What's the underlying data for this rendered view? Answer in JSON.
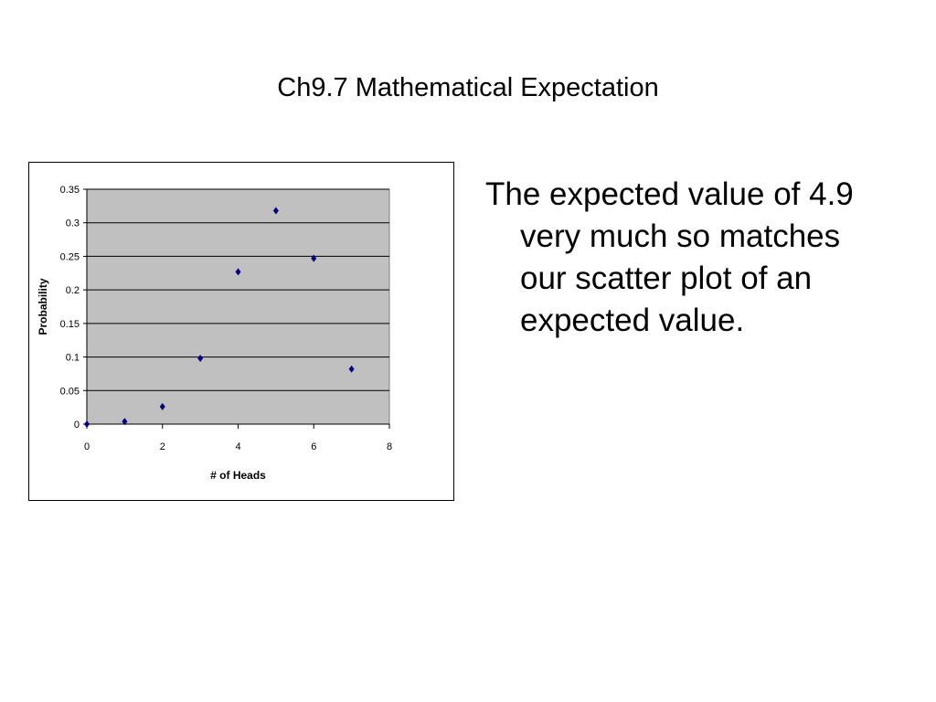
{
  "slide": {
    "title": "Ch9.7 Mathematical Expectation",
    "bullet": "The expected value of 4.9 very much so matches our scatter plot of an expected value."
  },
  "chart_data": {
    "type": "scatter",
    "xlabel": "# of Heads",
    "ylabel": "Probability",
    "xlim": [
      0,
      8
    ],
    "ylim": [
      0,
      0.35
    ],
    "xticks": [
      0,
      2,
      4,
      6,
      8
    ],
    "xtick_labels": [
      "0",
      "2",
      "4",
      "6",
      "8"
    ],
    "yticks": [
      0,
      0.05,
      0.1,
      0.15,
      0.2,
      0.25,
      0.3,
      0.35
    ],
    "ytick_labels": [
      "0",
      "0.05",
      "0.1",
      "0.15",
      "0.2",
      "0.25",
      "0.3",
      "0.35"
    ],
    "grid": "horizontal",
    "legend": "none",
    "plot_background": "#c0c0c0",
    "marker_color": "#000080",
    "marker": "diamond",
    "points": [
      {
        "x": 0,
        "y": 0.0
      },
      {
        "x": 1,
        "y": 0.004
      },
      {
        "x": 2,
        "y": 0.026
      },
      {
        "x": 3,
        "y": 0.098
      },
      {
        "x": 4,
        "y": 0.227
      },
      {
        "x": 5,
        "y": 0.318
      },
      {
        "x": 6,
        "y": 0.247
      },
      {
        "x": 7,
        "y": 0.082
      }
    ]
  }
}
